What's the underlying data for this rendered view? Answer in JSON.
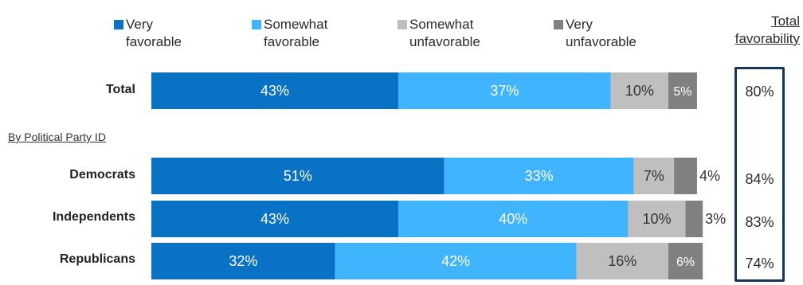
{
  "legend": [
    {
      "line1": "Very",
      "line2": "favorable",
      "color": "#0a72c4"
    },
    {
      "line1": "Somewhat",
      "line2": "favorable",
      "color": "#41b4ff"
    },
    {
      "line1": "Somewhat",
      "line2": "unfavorable",
      "color": "#bfbfbf"
    },
    {
      "line1": "Very",
      "line2": "unfavorable",
      "color": "#808080"
    }
  ],
  "total_favorability_header": {
    "line1": "Total",
    "line2": "favorability"
  },
  "section_label": "By Political Party ID",
  "chart_data": {
    "type": "bar",
    "orientation": "horizontal",
    "stacked": true,
    "categories": [
      "Total",
      "Democrats",
      "Independents",
      "Republicans"
    ],
    "series": [
      {
        "name": "Very favorable",
        "values": [
          43,
          51,
          43,
          32
        ],
        "labels": [
          "43%",
          "51%",
          "43%",
          "32%"
        ],
        "color": "#0a72c4"
      },
      {
        "name": "Somewhat favorable",
        "values": [
          37,
          33,
          40,
          42
        ],
        "labels": [
          "37%",
          "33%",
          "40%",
          "42%"
        ],
        "color": "#41b4ff"
      },
      {
        "name": "Somewhat unfavorable",
        "values": [
          10,
          7,
          10,
          16
        ],
        "labels": [
          "10%",
          "7%",
          "10%",
          "16%"
        ],
        "color": "#bfbfbf"
      },
      {
        "name": "Very unfavorable",
        "values": [
          5,
          4,
          3,
          6
        ],
        "labels": [
          "5%",
          "4%",
          "3%",
          "6%"
        ],
        "color": "#808080"
      }
    ],
    "total_favorability": [
      "80%",
      "84%",
      "83%",
      "74%"
    ],
    "xlim": [
      0,
      100
    ],
    "grid": false,
    "legend_position": "top"
  }
}
